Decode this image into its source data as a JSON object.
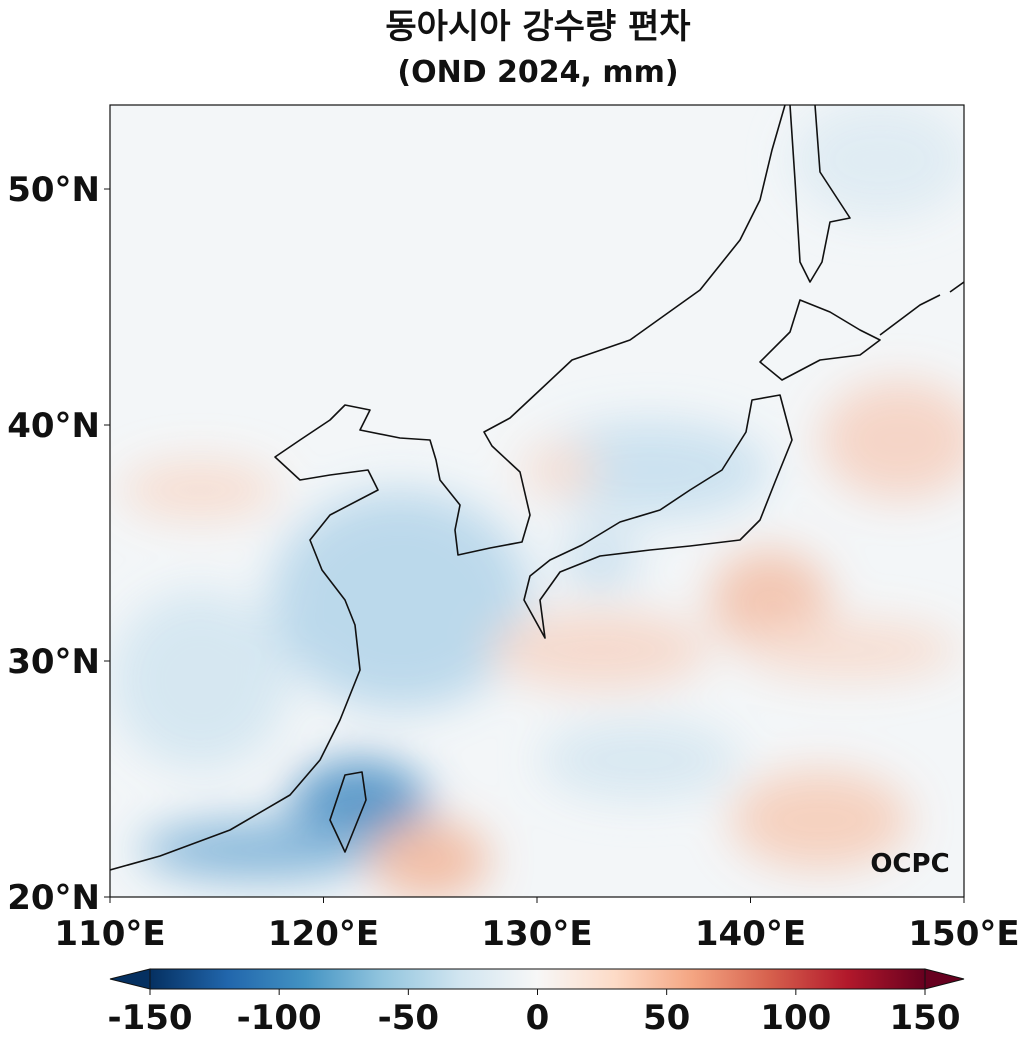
{
  "title": "동아시아 강수량 편차",
  "subtitle": "(OND 2024, mm)",
  "map": {
    "lonlim": [
      110,
      150
    ],
    "latlim": [
      20,
      53.56
    ],
    "xticks": [
      {
        "value": 110,
        "label": "110°E"
      },
      {
        "value": 120,
        "label": "120°E"
      },
      {
        "value": 130,
        "label": "130°E"
      },
      {
        "value": 140,
        "label": "140°E"
      },
      {
        "value": 150,
        "label": "150°E"
      }
    ],
    "yticks": [
      {
        "value": 20,
        "label": "20°N"
      },
      {
        "value": 30,
        "label": "30°N"
      },
      {
        "value": 40,
        "label": "40°N"
      },
      {
        "value": 50,
        "label": "50°N"
      }
    ],
    "watermark": "OCPC"
  },
  "colorbar": {
    "lim": [
      -150,
      150
    ],
    "ticks": [
      -150,
      -100,
      -50,
      0,
      50,
      100,
      150
    ],
    "colormap": [
      "#053061",
      "#2166ac",
      "#4393c3",
      "#92c5de",
      "#d1e5f0",
      "#f7f7f7",
      "#fddbc7",
      "#f4a582",
      "#d6604d",
      "#b2182b",
      "#67001f"
    ]
  }
}
